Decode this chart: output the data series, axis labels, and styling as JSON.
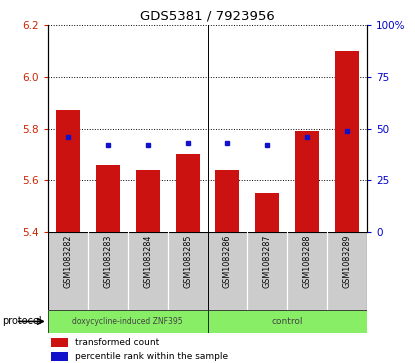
{
  "title": "GDS5381 / 7923956",
  "samples": [
    "GSM1083282",
    "GSM1083283",
    "GSM1083284",
    "GSM1083285",
    "GSM1083286",
    "GSM1083287",
    "GSM1083288",
    "GSM1083289"
  ],
  "red_values": [
    5.87,
    5.66,
    5.64,
    5.7,
    5.64,
    5.55,
    5.79,
    6.1
  ],
  "blue_values": [
    46.0,
    42.0,
    42.0,
    43.0,
    43.0,
    42.0,
    46.0,
    49.0
  ],
  "ylim_left": [
    5.4,
    6.2
  ],
  "ylim_right": [
    0,
    100
  ],
  "left_ticks": [
    5.4,
    5.6,
    5.8,
    6.0,
    6.2
  ],
  "right_ticks": [
    0,
    25,
    50,
    75,
    100
  ],
  "protocol_labels": [
    "doxycycline-induced ZNF395",
    "control"
  ],
  "protocol_groups": [
    4,
    4
  ],
  "bar_color": "#cc1111",
  "dot_color": "#1111cc",
  "protocol_color": "#88ee66",
  "bg_color": "#cccccc",
  "plot_bg": "#ffffff",
  "legend_red": "transformed count",
  "legend_blue": "percentile rank within the sample",
  "left_label_color": "#cc2200",
  "right_label_color": "#0000cc"
}
